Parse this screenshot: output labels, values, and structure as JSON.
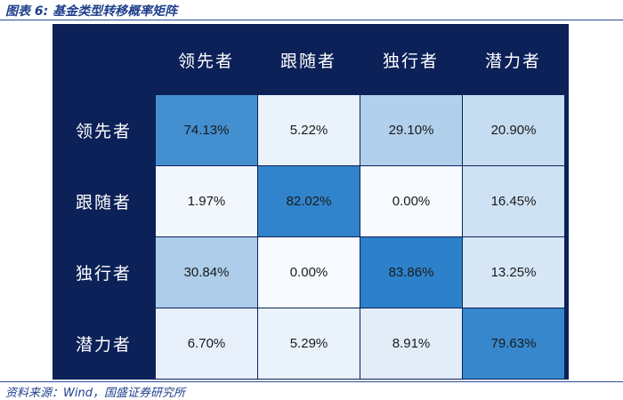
{
  "figure_title": "图表 6:  基金类型转移概率矩阵",
  "source": "资料来源：Wind，国盛证券研究所",
  "chart_data": {
    "type": "heatmap",
    "title": "",
    "columns": [
      "领先者",
      "跟随者",
      "独行者",
      "潜力者"
    ],
    "rows": [
      "领先者",
      "跟随者",
      "独行者",
      "潜力者"
    ],
    "values": [
      [
        74.13,
        5.22,
        29.1,
        20.9
      ],
      [
        1.97,
        82.02,
        0.0,
        16.45
      ],
      [
        30.84,
        0.0,
        83.86,
        13.25
      ],
      [
        6.7,
        5.29,
        8.91,
        79.63
      ]
    ],
    "labels": [
      [
        "74.13%",
        "5.22%",
        "29.10%",
        "20.90%"
      ],
      [
        "1.97%",
        "82.02%",
        "0.00%",
        "16.45%"
      ],
      [
        "30.84%",
        "0.00%",
        "83.86%",
        "13.25%"
      ],
      [
        "6.70%",
        "5.29%",
        "8.91%",
        "79.63%"
      ]
    ],
    "unit": "%",
    "value_range": [
      0,
      90
    ],
    "colors": {
      "header_bg": "#0c2158",
      "low": "#f7fafe",
      "high": "#1e78c6"
    }
  }
}
